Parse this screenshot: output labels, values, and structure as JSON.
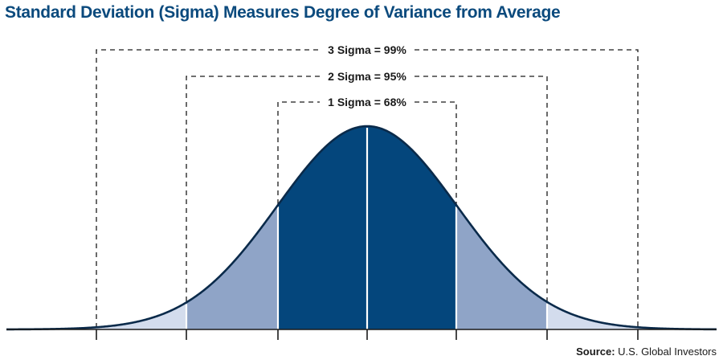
{
  "title": "Standard Deviation (Sigma) Measures Degree of Variance from Average",
  "source": {
    "label": "Source:",
    "text": "U.S. Global Investors"
  },
  "bands": [
    {
      "label": "3 Sigma = 99%"
    },
    {
      "label": "2 Sigma = 95%"
    },
    {
      "label": "1 Sigma = 68%"
    }
  ],
  "colors": {
    "title": "#0b4a7d",
    "one_sigma_fill": "#04467c",
    "two_sigma_fill": "#8fa4c7",
    "three_sigma_fill": "#d3dced",
    "curve_stroke": "#0a2a4a",
    "divider": "#ffffff"
  }
}
